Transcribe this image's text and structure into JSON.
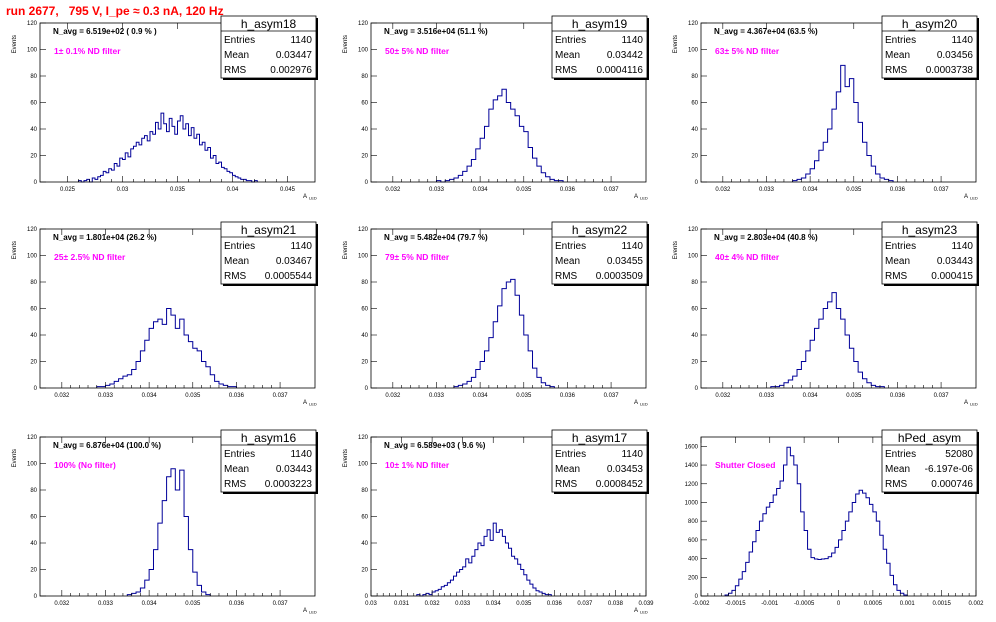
{
  "header": {
    "title": "run 2677,   795 V, I_pe ≈ 0.3 nA, 120 Hz"
  },
  "chart_data": [
    {
      "type": "bar",
      "name": "h_asym18",
      "xlim": [
        0.0225,
        0.0475
      ],
      "ylim": [
        0,
        120
      ],
      "xticks": [
        0.025,
        0.03,
        0.035,
        0.04,
        0.045
      ],
      "xtick_labels": [
        "0.025",
        "0.03",
        "0.035",
        "0.04",
        "0.045"
      ],
      "yticks": [
        0,
        20,
        40,
        60,
        80,
        100,
        120
      ],
      "ytick_labels": [
        "0",
        "20",
        "40",
        "60",
        "80",
        "100",
        "120"
      ],
      "xlabel": "A",
      "xlabel_sub": "LED",
      "ylabel": "Events",
      "n_avg_label": "N_avg = 6.519e+02 ( 0.9 % )",
      "filter_label": "1± 0.1% ND filter",
      "stats": {
        "title": "h_asym18",
        "entries_label": "Entries",
        "entries": "1140",
        "mean_label": "Mean",
        "mean": "0.03447",
        "rms_label": "RMS",
        "rms": "0.002976"
      },
      "bins": {
        "x0": 0.026,
        "width": 0.00025,
        "values": [
          1,
          0,
          1,
          2,
          0,
          3,
          2,
          4,
          5,
          8,
          7,
          10,
          9,
          14,
          12,
          18,
          17,
          22,
          19,
          25,
          27,
          30,
          28,
          33,
          35,
          31,
          38,
          36,
          45,
          40,
          52,
          44,
          38,
          48,
          42,
          36,
          46,
          50,
          40,
          44,
          35,
          41,
          33,
          36,
          28,
          30,
          24,
          26,
          18,
          20,
          14,
          15,
          11,
          10,
          8,
          7,
          5,
          4,
          3,
          2,
          2,
          1,
          1,
          0,
          1
        ]
      }
    },
    {
      "type": "bar",
      "name": "h_asym19",
      "xlim": [
        0.0315,
        0.0378
      ],
      "ylim": [
        0,
        120
      ],
      "xticks": [
        0.032,
        0.033,
        0.034,
        0.035,
        0.036,
        0.037
      ],
      "xtick_labels": [
        "0.032",
        "0.033",
        "0.034",
        "0.035",
        "0.036",
        "0.037"
      ],
      "yticks": [
        0,
        20,
        40,
        60,
        80,
        100,
        120
      ],
      "ytick_labels": [
        "0",
        "20",
        "40",
        "60",
        "80",
        "100",
        "120"
      ],
      "xlabel": "A",
      "xlabel_sub": "LED",
      "ylabel": "Events",
      "n_avg_label": "N_avg = 3.516e+04 (51.1 %)",
      "filter_label": "50± 5% ND filter",
      "stats": {
        "title": "h_asym19",
        "entries_label": "Entries",
        "entries": "1140",
        "mean_label": "Mean",
        "mean": "0.03442",
        "rms_label": "RMS",
        "rms": "0.0004116"
      },
      "bins": {
        "x0": 0.033,
        "width": 0.0001,
        "values": [
          1,
          0,
          1,
          2,
          3,
          5,
          8,
          12,
          17,
          25,
          33,
          42,
          55,
          62,
          65,
          70,
          60,
          55,
          50,
          42,
          38,
          26,
          18,
          12,
          7,
          4,
          2,
          1,
          1
        ]
      }
    },
    {
      "type": "bar",
      "name": "h_asym20",
      "xlim": [
        0.0315,
        0.0378
      ],
      "ylim": [
        0,
        120
      ],
      "xticks": [
        0.032,
        0.033,
        0.034,
        0.035,
        0.036,
        0.037
      ],
      "xtick_labels": [
        "0.032",
        "0.033",
        "0.034",
        "0.035",
        "0.036",
        "0.037"
      ],
      "yticks": [
        0,
        20,
        40,
        60,
        80,
        100,
        120
      ],
      "ytick_labels": [
        "0",
        "20",
        "40",
        "60",
        "80",
        "100",
        "120"
      ],
      "xlabel": "A",
      "xlabel_sub": "LED",
      "ylabel": "Events",
      "n_avg_label": "N_avg = 4.367e+04 (63.5 %)",
      "filter_label": "63± 5% ND filter",
      "stats": {
        "title": "h_asym20",
        "entries_label": "Entries",
        "entries": "1140",
        "mean_label": "Mean",
        "mean": "0.03456",
        "rms_label": "RMS",
        "rms": "0.0003738"
      },
      "bins": {
        "x0": 0.0336,
        "width": 0.0001,
        "values": [
          1,
          2,
          3,
          6,
          10,
          16,
          24,
          30,
          40,
          55,
          68,
          88,
          72,
          78,
          60,
          45,
          30,
          20,
          12,
          6,
          3,
          2,
          1
        ]
      }
    },
    {
      "type": "bar",
      "name": "h_asym21",
      "xlim": [
        0.0315,
        0.0378
      ],
      "ylim": [
        0,
        120
      ],
      "xticks": [
        0.032,
        0.033,
        0.034,
        0.035,
        0.036,
        0.037
      ],
      "xtick_labels": [
        "0.032",
        "0.033",
        "0.034",
        "0.035",
        "0.036",
        "0.037"
      ],
      "yticks": [
        0,
        20,
        40,
        60,
        80,
        100,
        120
      ],
      "ytick_labels": [
        "0",
        "20",
        "40",
        "60",
        "80",
        "100",
        "120"
      ],
      "xlabel": "A",
      "xlabel_sub": "LED",
      "ylabel": "Events",
      "n_avg_label": "N_avg = 1.801e+04 (26.2 %)",
      "filter_label": "25± 2.5% ND filter",
      "stats": {
        "title": "h_asym21",
        "entries_label": "Entries",
        "entries": "1140",
        "mean_label": "Mean",
        "mean": "0.03467",
        "rms_label": "RMS",
        "rms": "0.0005544"
      },
      "bins": {
        "x0": 0.0328,
        "width": 0.0001,
        "values": [
          1,
          1,
          2,
          3,
          5,
          7,
          9,
          10,
          14,
          20,
          28,
          36,
          45,
          50,
          52,
          48,
          60,
          55,
          45,
          52,
          40,
          35,
          30,
          28,
          20,
          16,
          10,
          5,
          3,
          2,
          1,
          1
        ]
      }
    },
    {
      "type": "bar",
      "name": "h_asym22",
      "xlim": [
        0.0315,
        0.0378
      ],
      "ylim": [
        0,
        120
      ],
      "xticks": [
        0.032,
        0.033,
        0.034,
        0.035,
        0.036,
        0.037
      ],
      "xtick_labels": [
        "0.032",
        "0.033",
        "0.034",
        "0.035",
        "0.036",
        "0.037"
      ],
      "yticks": [
        0,
        20,
        40,
        60,
        80,
        100,
        120
      ],
      "ytick_labels": [
        "0",
        "20",
        "40",
        "60",
        "80",
        "100",
        "120"
      ],
      "xlabel": "A",
      "xlabel_sub": "LED",
      "ylabel": "Events",
      "n_avg_label": "N_avg = 5.482e+04 (79.7 %)",
      "filter_label": "79± 5% ND filter",
      "stats": {
        "title": "h_asym22",
        "entries_label": "Entries",
        "entries": "1140",
        "mean_label": "Mean",
        "mean": "0.03455",
        "rms_label": "RMS",
        "rms": "0.0003509"
      },
      "bins": {
        "x0": 0.0334,
        "width": 0.0001,
        "values": [
          1,
          2,
          3,
          5,
          8,
          14,
          20,
          28,
          38,
          50,
          62,
          75,
          80,
          82,
          70,
          55,
          40,
          28,
          15,
          8,
          4,
          2,
          1
        ]
      }
    },
    {
      "type": "bar",
      "name": "h_asym23",
      "xlim": [
        0.0315,
        0.0378
      ],
      "ylim": [
        0,
        120
      ],
      "xticks": [
        0.032,
        0.033,
        0.034,
        0.035,
        0.036,
        0.037
      ],
      "xtick_labels": [
        "0.032",
        "0.033",
        "0.034",
        "0.035",
        "0.036",
        "0.037"
      ],
      "yticks": [
        0,
        20,
        40,
        60,
        80,
        100,
        120
      ],
      "ytick_labels": [
        "0",
        "20",
        "40",
        "60",
        "80",
        "100",
        "120"
      ],
      "xlabel": "A",
      "xlabel_sub": "LED",
      "ylabel": "Events",
      "n_avg_label": "N_avg = 2.803e+04 (40.8 %)",
      "filter_label": "40± 4% ND filter",
      "stats": {
        "title": "h_asym23",
        "entries_label": "Entries",
        "entries": "1140",
        "mean_label": "Mean",
        "mean": "0.03443",
        "rms_label": "RMS",
        "rms": "0.000415"
      },
      "bins": {
        "x0": 0.0331,
        "width": 0.0001,
        "values": [
          1,
          1,
          2,
          4,
          6,
          9,
          14,
          20,
          28,
          36,
          45,
          52,
          60,
          65,
          72,
          60,
          52,
          40,
          30,
          20,
          12,
          7,
          4,
          2,
          1,
          1
        ]
      }
    },
    {
      "type": "bar",
      "name": "h_asym16",
      "xlim": [
        0.0315,
        0.0378
      ],
      "ylim": [
        0,
        120
      ],
      "xticks": [
        0.032,
        0.033,
        0.034,
        0.035,
        0.036,
        0.037
      ],
      "xtick_labels": [
        "0.032",
        "0.033",
        "0.034",
        "0.035",
        "0.036",
        "0.037"
      ],
      "yticks": [
        0,
        20,
        40,
        60,
        80,
        100,
        120
      ],
      "ytick_labels": [
        "0",
        "20",
        "40",
        "60",
        "80",
        "100",
        "120"
      ],
      "xlabel": "A",
      "xlabel_sub": "LED",
      "ylabel": "Events",
      "n_avg_label": "N_avg = 6.876e+04 (100.0 %)",
      "filter_label": "100% (No filter)",
      "stats": {
        "title": "h_asym16",
        "entries_label": "Entries",
        "entries": "1140",
        "mean_label": "Mean",
        "mean": "0.03443",
        "rms_label": "RMS",
        "rms": "0.0003223"
      },
      "bins": {
        "x0": 0.0335,
        "width": 0.0001,
        "values": [
          1,
          2,
          3,
          6,
          12,
          20,
          35,
          55,
          72,
          90,
          96,
          80,
          95,
          60,
          35,
          18,
          8,
          3,
          1
        ]
      }
    },
    {
      "type": "bar",
      "name": "h_asym17",
      "xlim": [
        0.03,
        0.039
      ],
      "ylim": [
        0,
        120
      ],
      "xticks": [
        0.03,
        0.031,
        0.032,
        0.033,
        0.034,
        0.035,
        0.036,
        0.037,
        0.038,
        0.039
      ],
      "xtick_labels": [
        "0.03",
        "0.031",
        "0.032",
        "0.033",
        "0.034",
        "0.035",
        "0.036",
        "0.037",
        "0.038",
        "0.039"
      ],
      "yticks": [
        0,
        20,
        40,
        60,
        80,
        100,
        120
      ],
      "ytick_labels": [
        "0",
        "20",
        "40",
        "60",
        "80",
        "100",
        "120"
      ],
      "xlabel": "A",
      "xlabel_sub": "LED",
      "ylabel": "Events",
      "n_avg_label": "N_avg = 6.589e+03 ( 9.6 %)",
      "filter_label": "10± 1% ND filter",
      "stats": {
        "title": "h_asym17",
        "entries_label": "Entries",
        "entries": "1140",
        "mean_label": "Mean",
        "mean": "0.03453",
        "rms_label": "RMS",
        "rms": "0.0008452"
      },
      "bins": {
        "x0": 0.0315,
        "width": 0.0001,
        "values": [
          1,
          0,
          1,
          2,
          1,
          3,
          4,
          5,
          7,
          8,
          10,
          12,
          15,
          18,
          20,
          22,
          28,
          25,
          30,
          35,
          40,
          38,
          45,
          50,
          42,
          55,
          48,
          50,
          45,
          40,
          36,
          30,
          28,
          24,
          20,
          16,
          12,
          9,
          6,
          4,
          3,
          2,
          1,
          1
        ]
      }
    },
    {
      "type": "bar",
      "name": "hPed_asym",
      "xlim": [
        -0.002,
        0.002
      ],
      "ylim": [
        0,
        1700
      ],
      "xticks": [
        -0.002,
        -0.0015,
        -0.001,
        -0.0005,
        0,
        0.0005,
        0.001,
        0.0015,
        0.002
      ],
      "xtick_labels": [
        "-0.002",
        "-0.0015",
        "-0.001",
        "-0.0005",
        "0",
        "0.0005",
        "0.001",
        "0.0015",
        "0.002"
      ],
      "yticks": [
        0,
        200,
        400,
        600,
        800,
        1000,
        1200,
        1400,
        1600
      ],
      "ytick_labels": [
        "0",
        "200",
        "400",
        "600",
        "800",
        "1000",
        "1200",
        "1400",
        "1600"
      ],
      "xlabel": "",
      "xlabel_sub": "",
      "ylabel": "",
      "n_avg_label": "",
      "filter_label": "Shutter Closed",
      "stats": {
        "title": "hPed_asym",
        "entries_label": "Entries",
        "entries": "52080",
        "mean_label": "Mean",
        "mean": "-6.197e-06",
        "rms_label": "RMS",
        "rms": "0.000746"
      },
      "bins": {
        "x0": -0.00165,
        "width": 5e-05,
        "values": [
          10,
          30,
          60,
          110,
          180,
          260,
          360,
          470,
          580,
          700,
          800,
          880,
          950,
          1000,
          1080,
          1150,
          1230,
          1400,
          1590,
          1500,
          1400,
          1200,
          900,
          700,
          500,
          410,
          395,
          390,
          395,
          400,
          420,
          460,
          520,
          600,
          700,
          800,
          900,
          1000,
          1090,
          1130,
          1100,
          1050,
          980,
          900,
          800,
          650,
          500,
          350,
          220,
          120,
          60,
          30,
          10
        ]
      }
    }
  ]
}
